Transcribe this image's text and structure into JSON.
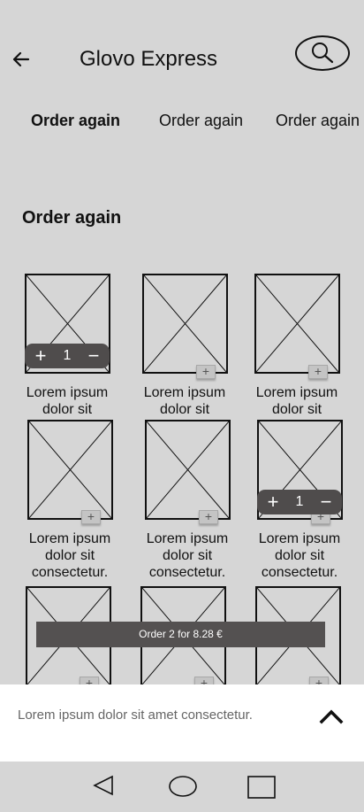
{
  "header": {
    "title": "Glovo Express",
    "back_icon": "arrow-left-icon",
    "search_icon": "search-icon"
  },
  "tabs": [
    {
      "label": "Order again",
      "active": true
    },
    {
      "label": "Order again",
      "active": false
    },
    {
      "label": "Order again",
      "active": false
    }
  ],
  "section": {
    "title": "Order  again"
  },
  "products": [
    {
      "label": "Lorem ipsum dolor sit",
      "quantity": "1",
      "in_cart": true
    },
    {
      "label": "Lorem ipsum dolor sit",
      "in_cart": false
    },
    {
      "label": "Lorem ipsum dolor sit",
      "in_cart": false
    },
    {
      "label": "Lorem ipsum dolor sit consectetur.",
      "in_cart": false
    },
    {
      "label": "Lorem ipsum dolor sit consectetur.",
      "in_cart": false
    },
    {
      "label": "Lorem ipsum dolor sit consectetur.",
      "quantity": "1",
      "in_cart": true
    },
    {
      "label": "",
      "in_cart": false
    },
    {
      "label": "",
      "in_cart": false
    },
    {
      "label": "",
      "in_cart": false
    }
  ],
  "stepper": {
    "plus": "+",
    "minus": "−"
  },
  "add_button_glyph": "+",
  "order_bar": {
    "label": "Order 2 for 8.28 €"
  },
  "bottom_sheet": {
    "text": "Lorem ipsum dolor sit amet consectetur.",
    "chevron_icon": "chevron-up-icon"
  },
  "navbar": {
    "back_icon": "nav-back-icon",
    "home_icon": "nav-home-icon",
    "recents_icon": "nav-recents-icon"
  },
  "colors": {
    "background": "#d6d6d6",
    "dark_pill": "#4f4c4c",
    "sheet": "#ffffff"
  }
}
